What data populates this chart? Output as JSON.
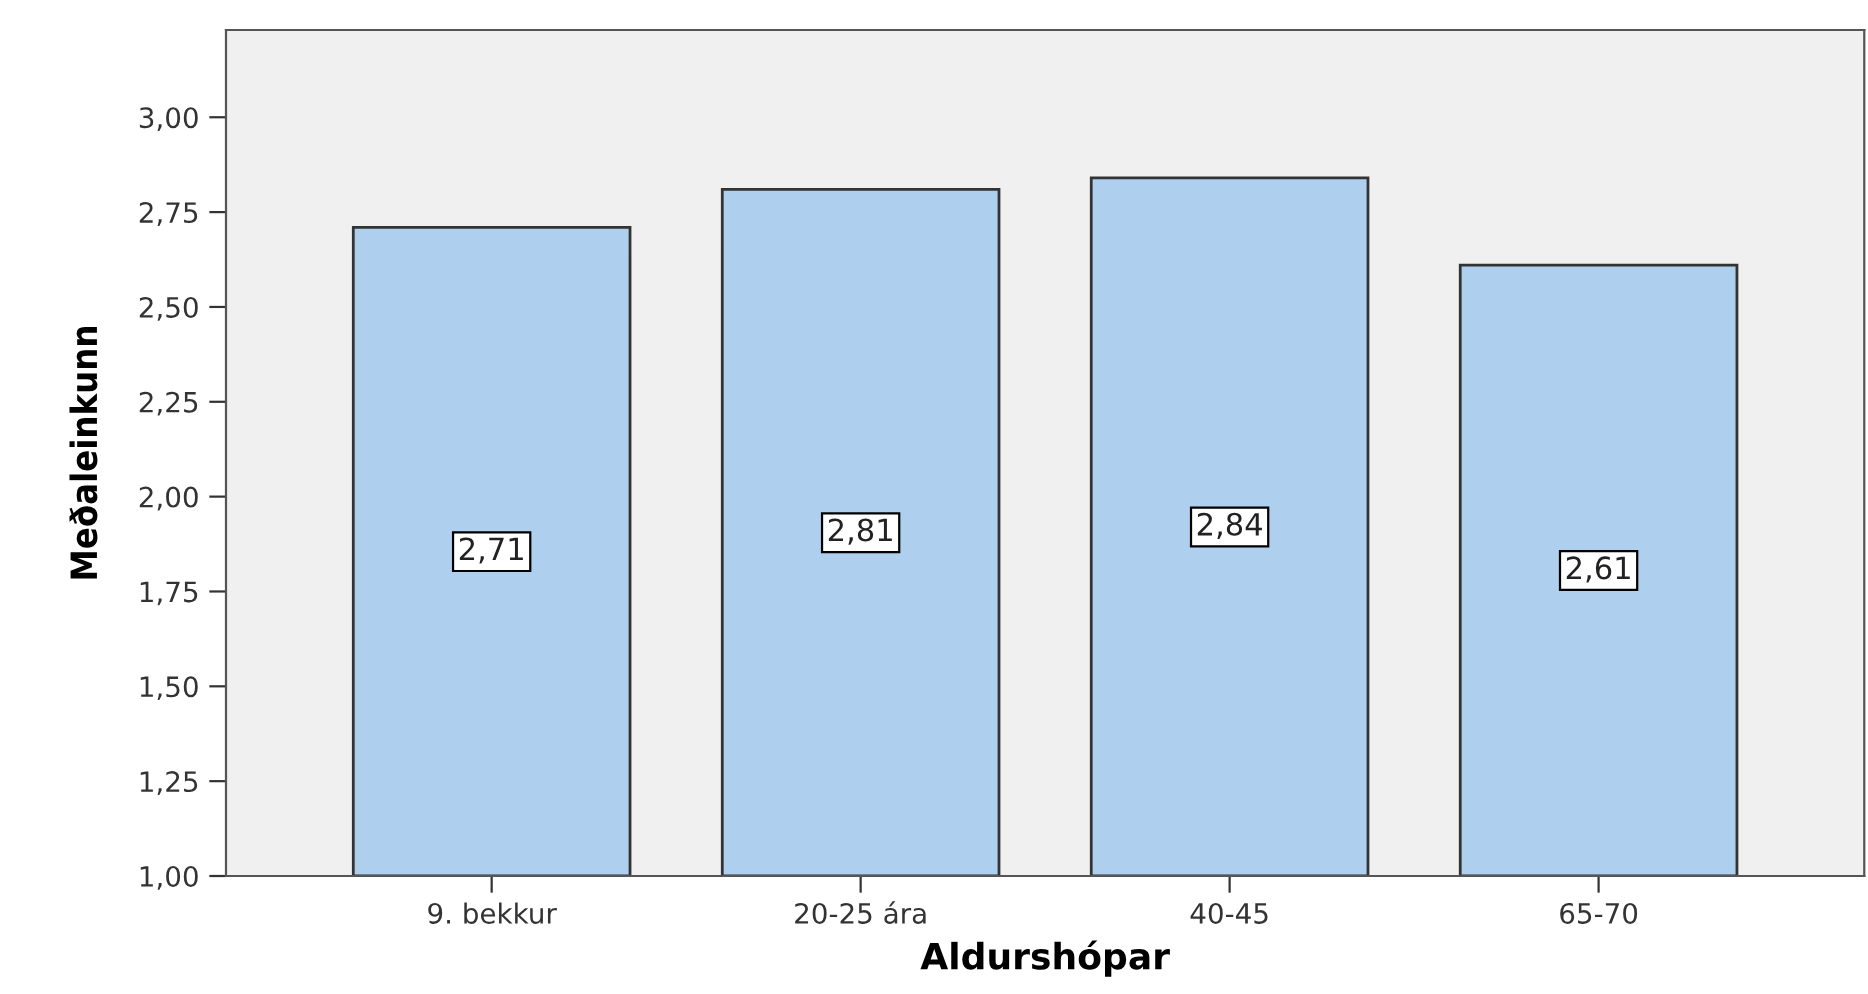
{
  "chart_data": {
    "type": "bar",
    "xlabel": "Aldurshópar",
    "ylabel": "Meðaleinkunn",
    "categories": [
      "9. bekkur",
      "20-25 ára",
      "40-45",
      "65-70"
    ],
    "series": [
      {
        "color": "#aecfee",
        "values": [
          2.71,
          2.81,
          2.84,
          2.61
        ],
        "value_labels": [
          "2,71",
          "2,81",
          "2,84",
          "2,61"
        ]
      }
    ],
    "ylim": [
      1.0,
      3.23
    ],
    "yticks": [
      {
        "value": 1.0,
        "label": "1,00"
      },
      {
        "value": 1.25,
        "label": "1,25"
      },
      {
        "value": 1.5,
        "label": "1,50"
      },
      {
        "value": 1.75,
        "label": "1,75"
      },
      {
        "value": 2.0,
        "label": "2,00"
      },
      {
        "value": 2.25,
        "label": "2,25"
      },
      {
        "value": 2.5,
        "label": "2,50"
      },
      {
        "value": 2.75,
        "label": "2,75"
      },
      {
        "value": 3.0,
        "label": "3,00"
      }
    ],
    "grid": false,
    "legend": false
  }
}
